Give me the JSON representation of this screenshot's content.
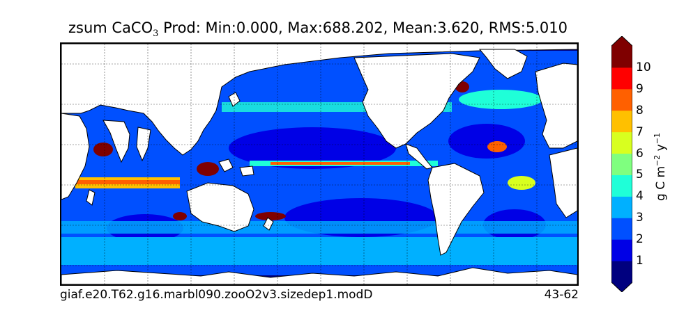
{
  "title": {
    "prefix": "zsum CaCO",
    "sub": "3",
    "suffix": " Prod: Min:0.000, Max:688.202, Mean:3.620, RMS:5.010"
  },
  "footer": {
    "case_name": "giaf.e20.T62.g16.marbl090.zooO2v3.sizedep1.modD",
    "years": "43-62"
  },
  "colorbar": {
    "unit_label": {
      "base": "g C m",
      "exp1": "−2",
      "mid": " y",
      "exp2": "−1"
    },
    "tick_labels": [
      "1",
      "2",
      "3",
      "4",
      "5",
      "6",
      "7",
      "8",
      "9",
      "10"
    ],
    "colors": [
      "#00007f",
      "#0000e6",
      "#0050ff",
      "#00b0ff",
      "#1fffd8",
      "#7fff7f",
      "#d8ff1f",
      "#ffc000",
      "#ff6000",
      "#ff0000",
      "#7f0000"
    ],
    "extend": "both"
  },
  "map": {
    "projection": "global cylindrical, Pacific-centered",
    "lon_range": [
      20,
      380
    ],
    "lat_range": [
      -78,
      90
    ],
    "grid": "dashed",
    "land_color": "#ffffff"
  }
}
